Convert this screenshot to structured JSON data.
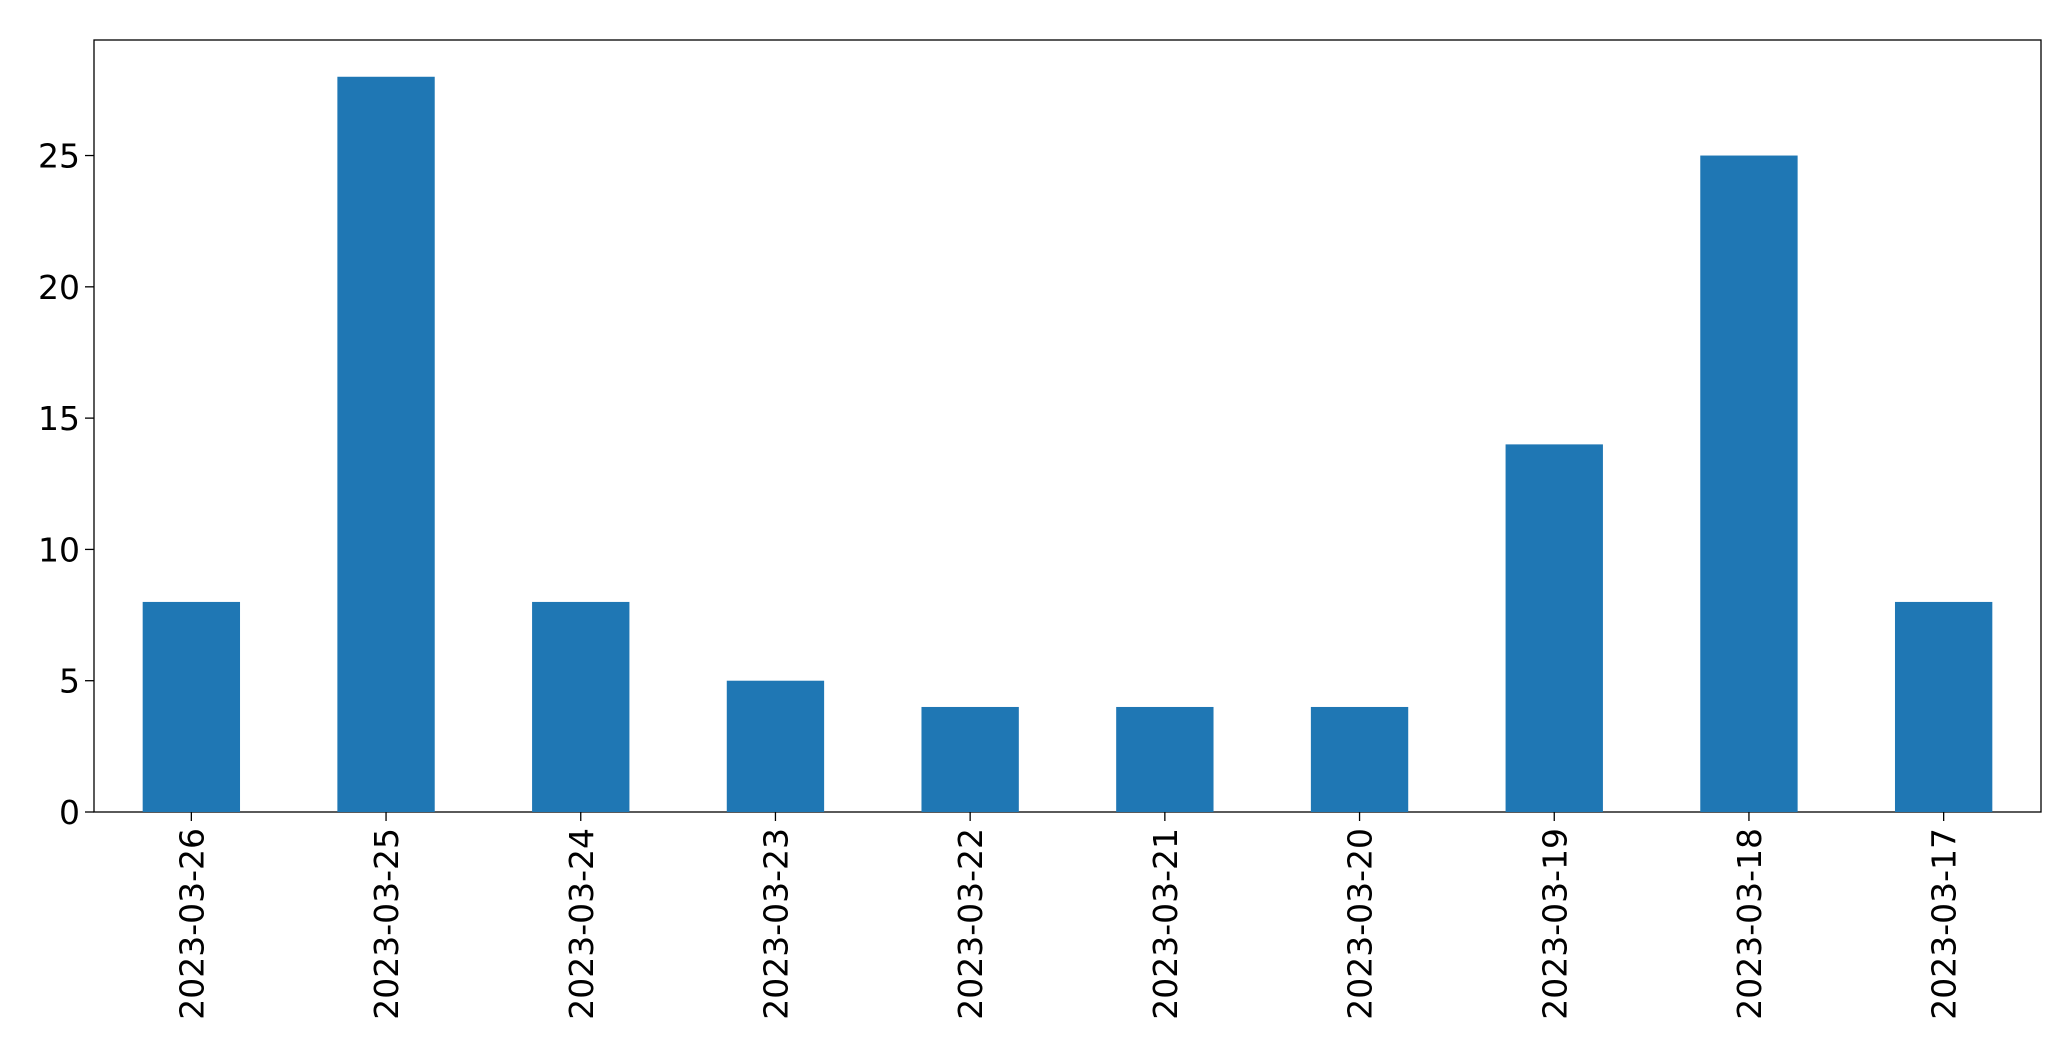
{
  "chart_data": {
    "type": "bar",
    "categories": [
      "2023-03-26",
      "2023-03-25",
      "2023-03-24",
      "2023-03-23",
      "2023-03-22",
      "2023-03-21",
      "2023-03-20",
      "2023-03-19",
      "2023-03-18",
      "2023-03-17"
    ],
    "values": [
      8,
      28,
      8,
      5,
      4,
      4,
      4,
      14,
      25,
      8
    ],
    "color": "#1f77b4",
    "ylim": [
      0,
      29.4
    ],
    "yticks": [
      0,
      5,
      10,
      15,
      20,
      25
    ],
    "grid": false
  }
}
